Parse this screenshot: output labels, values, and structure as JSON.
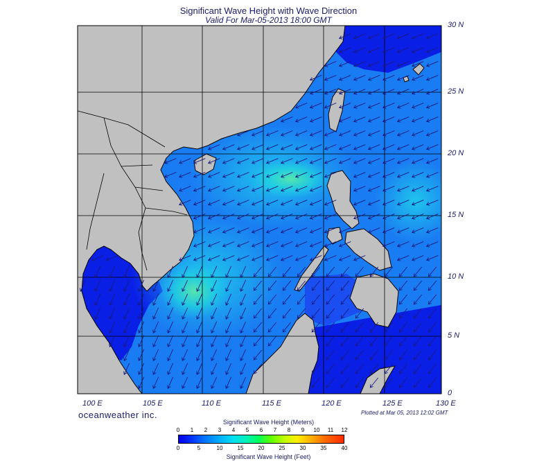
{
  "title": "Significant Wave Height with Wave Direction",
  "subtitle": "Valid For Mar-05-2013 18:00 GMT",
  "lat_labels": [
    "30 N",
    "25 N",
    "20 N",
    "15 N",
    "10 N",
    "5 N",
    "0"
  ],
  "lon_labels": [
    "100 E",
    "105 E",
    "110 E",
    "115 E",
    "120 E",
    "125 E",
    "130 E"
  ],
  "brand": "oceanweather inc.",
  "plotted": "Plotted at Mar 05, 2013 12:02 GMT",
  "colorbar": {
    "meters_title": "Significant Wave Height (Meters)",
    "meters_ticks": [
      "0",
      "1",
      "2",
      "3",
      "4",
      "5",
      "6",
      "7",
      "8",
      "9",
      "10",
      "11",
      "12"
    ],
    "feet_title": "Significant Wave Height (Feet)",
    "feet_ticks": [
      "0",
      "5",
      "10",
      "15",
      "20",
      "25",
      "30",
      "35",
      "40"
    ]
  },
  "colors": {
    "land": "#c0c0c0",
    "sea_deep": "#0a1fe6",
    "sea_mid": "#1a7cf2",
    "sea_light": "#1fc8ec",
    "sea_peak": "#5ae8a8",
    "grid": "#000000",
    "arrow": "#1a1a80"
  }
}
